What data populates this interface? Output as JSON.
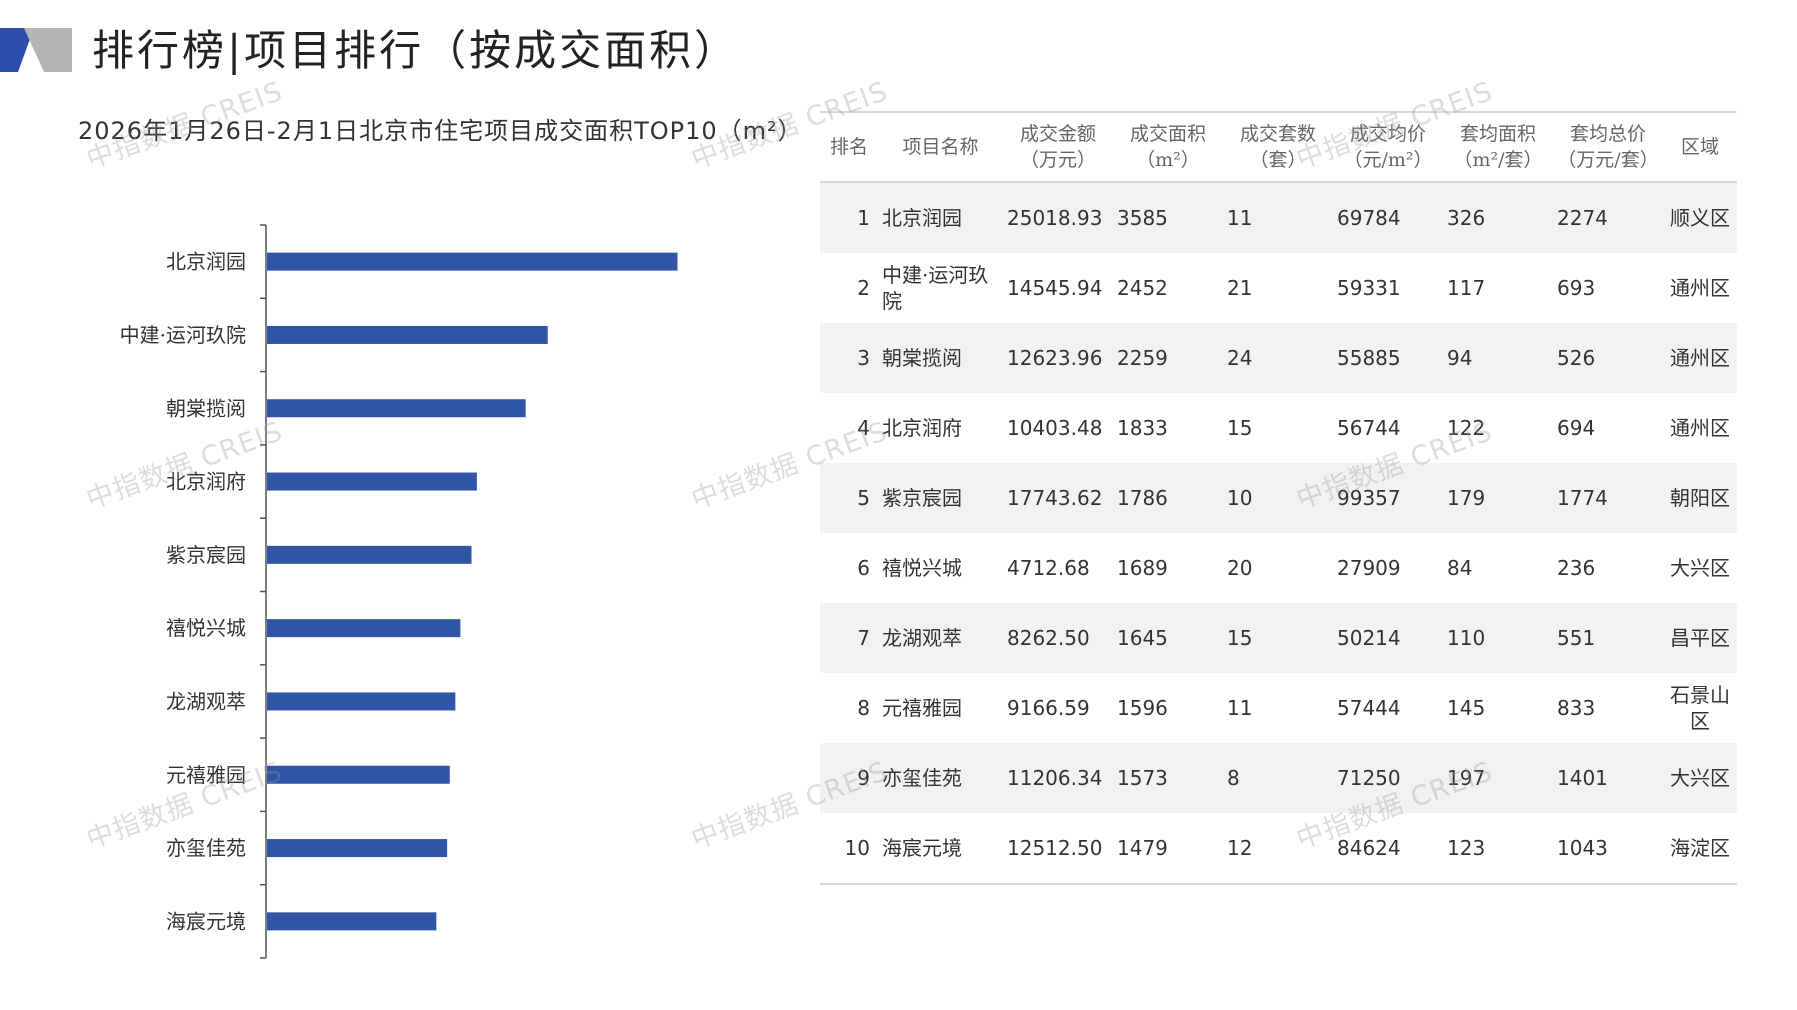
{
  "page": {
    "title": "排行榜|项目排行（按成交面积）",
    "logo_colors": {
      "primary": "#2f4eac",
      "secondary": "#b5b5b5"
    }
  },
  "watermark_text": "中指数据 CREIS",
  "chart_data": {
    "type": "bar",
    "orientation": "horizontal",
    "title": "2026年1月26日-2月1日北京市住宅项目成交面积TOP10（m²）",
    "categories": [
      "北京润园",
      "中建·运河玖院",
      "朝棠揽阅",
      "北京润府",
      "紫京宸园",
      "禧悦兴城",
      "龙湖观萃",
      "元禧雅园",
      "亦玺佳苑",
      "海宸元境"
    ],
    "series": [
      {
        "values": [
          3585,
          2452,
          2259,
          1833,
          1786,
          1689,
          1645,
          1596,
          1573,
          1479
        ]
      }
    ],
    "bar_color": "#2f54a8",
    "axis_color": "#555555",
    "xlim": [
      0,
      4000
    ],
    "grid": false,
    "legend": false
  },
  "table": {
    "headers": [
      {
        "line1": "排名",
        "line2": ""
      },
      {
        "line1": "项目名称",
        "line2": ""
      },
      {
        "line1": "成交金额",
        "line2": "（万元）"
      },
      {
        "line1": "成交面积",
        "line2": "（m²）"
      },
      {
        "line1": "成交套数",
        "line2": "（套）"
      },
      {
        "line1": "成交均价",
        "line2": "（元/m²）"
      },
      {
        "line1": "套均面积",
        "line2": "（m²/套）"
      },
      {
        "line1": "套均总价",
        "line2": "（万元/套）"
      },
      {
        "line1": "区域",
        "line2": ""
      }
    ],
    "rows": [
      [
        "1",
        "北京润园",
        "25018.93",
        "3585",
        "11",
        "69784",
        "326",
        "2274",
        "顺义区"
      ],
      [
        "2",
        "中建·运河玖院",
        "14545.94",
        "2452",
        "21",
        "59331",
        "117",
        "693",
        "通州区"
      ],
      [
        "3",
        "朝棠揽阅",
        "12623.96",
        "2259",
        "24",
        "55885",
        "94",
        "526",
        "通州区"
      ],
      [
        "4",
        "北京润府",
        "10403.48",
        "1833",
        "15",
        "56744",
        "122",
        "694",
        "通州区"
      ],
      [
        "5",
        "紫京宸园",
        "17743.62",
        "1786",
        "10",
        "99357",
        "179",
        "1774",
        "朝阳区"
      ],
      [
        "6",
        "禧悦兴城",
        "4712.68",
        "1689",
        "20",
        "27909",
        "84",
        "236",
        "大兴区"
      ],
      [
        "7",
        "龙湖观萃",
        "8262.50",
        "1645",
        "15",
        "50214",
        "110",
        "551",
        "昌平区"
      ],
      [
        "8",
        "元禧雅园",
        "9166.59",
        "1596",
        "11",
        "57444",
        "145",
        "833",
        "石景山区"
      ],
      [
        "9",
        "亦玺佳苑",
        "11206.34",
        "1573",
        "8",
        "71250",
        "197",
        "1401",
        "大兴区"
      ],
      [
        "10",
        "海宸元境",
        "12512.50",
        "1479",
        "12",
        "84624",
        "123",
        "1043",
        "海淀区"
      ]
    ]
  }
}
